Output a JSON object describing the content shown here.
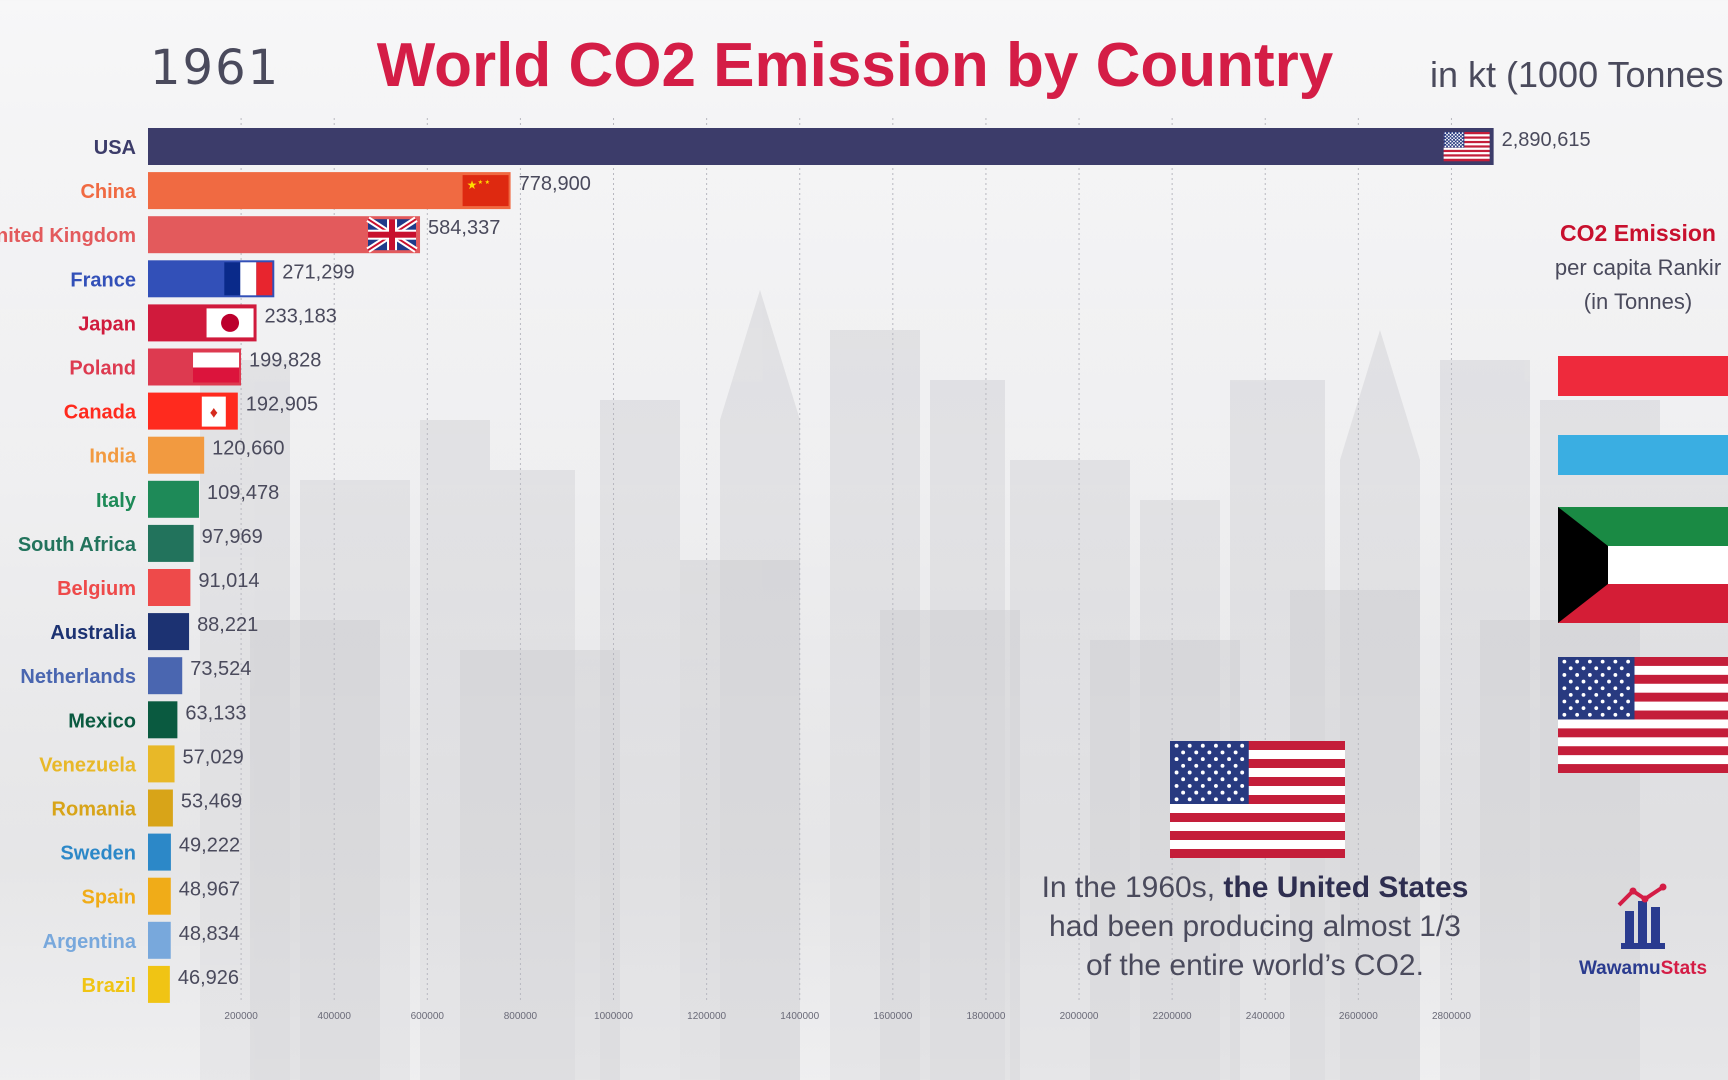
{
  "header": {
    "year": "1961",
    "title": "World CO2 Emission by Country",
    "unit": "in kt (1000 Tonnes"
  },
  "chart_data": {
    "type": "bar",
    "orientation": "horizontal",
    "title": "World CO2 Emission by Country",
    "categories": [
      "USA",
      "China",
      "nited Kingdom",
      "France",
      "Japan",
      "Poland",
      "Canada",
      "India",
      "Italy",
      "South Africa",
      "Belgium",
      "Australia",
      "Netherlands",
      "Mexico",
      "Venezuela",
      "Romania",
      "Sweden",
      "Spain",
      "Argentina",
      "Brazil"
    ],
    "values": [
      2890615,
      778900,
      584337,
      271299,
      233183,
      199828,
      192905,
      120660,
      109478,
      97969,
      91014,
      88221,
      73524,
      63133,
      57029,
      53469,
      49222,
      48967,
      48834,
      46926
    ],
    "value_labels": [
      "2,890,615",
      "778,900",
      "584,337",
      "271,299",
      "233,183",
      "199,828",
      "192,905",
      "120,660",
      "109,478",
      "97,969",
      "91,014",
      "88,221",
      "73,524",
      "63,133",
      "57,029",
      "53,469",
      "49,222",
      "48,967",
      "48,834",
      "46,926"
    ],
    "colors": [
      "#3c3c6a",
      "#f06a42",
      "#e35a5c",
      "#3250b8",
      "#d01a3c",
      "#dd3a50",
      "#ff2a1e",
      "#f29a40",
      "#1e8a58",
      "#22735c",
      "#ee4a4a",
      "#1c3272",
      "#4a66b0",
      "#0a5a40",
      "#e8b828",
      "#d8a418",
      "#2c88c8",
      "#f0ac18",
      "#78a8dc",
      "#f0c414"
    ],
    "flags": [
      "us-flag-icon",
      "china-flag-icon",
      "uk-flag-icon",
      "france-flag-icon",
      "japan-flag-icon",
      "poland-flag-icon",
      "canada-flag-icon",
      "",
      "",
      "",
      "",
      "",
      "",
      "",
      "",
      "",
      "",
      "",
      "",
      ""
    ],
    "xlim": [
      0,
      2900000
    ],
    "xticks": [
      200000,
      400000,
      600000,
      800000,
      1000000,
      1200000,
      1400000,
      1600000,
      1800000,
      2000000,
      2200000,
      2400000,
      2600000,
      2800000
    ],
    "grid": true
  },
  "sidebar": {
    "title": "CO2 Emission",
    "subtitle": "per capita Rankir",
    "note": "(in Tonnes)",
    "flags": [
      "red-bar-flag-icon",
      "light-blue-bar-flag-icon",
      "kuwait-flag-icon",
      "us-flag-icon"
    ]
  },
  "fact": {
    "part1": "In the 1960s, ",
    "highlight": "the United States",
    "part2": "had been producing almost 1/3",
    "part3": "of the entire world’s CO2."
  },
  "logo": {
    "part1": "Wawamu",
    "part2": "Stats"
  },
  "colors": {
    "title": "#d41d46",
    "text": "#4a4a5c",
    "accent_blue": "#2a3b8f"
  }
}
